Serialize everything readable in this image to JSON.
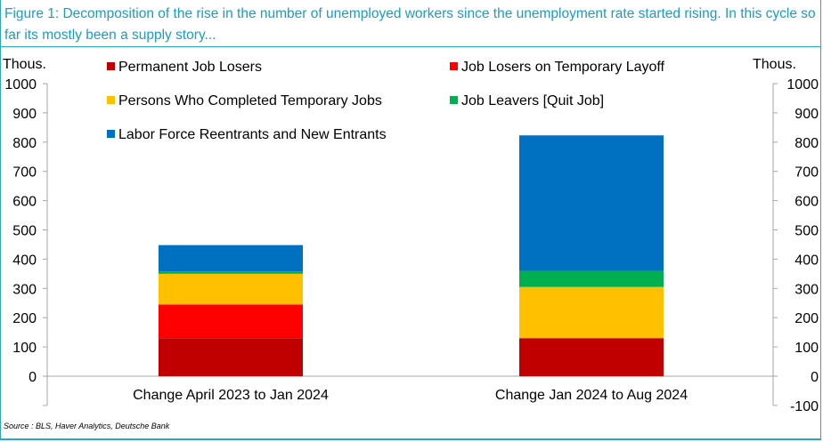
{
  "figure": {
    "title": "Figure 1: Decomposition of the rise in the number of unemployed workers since the unemployment rate started rising. In this cycle so far its mostly been a supply story...",
    "source": "Source : BLS, Haver Analytics, Deutsche Bank"
  },
  "chart_data": {
    "type": "bar",
    "stacked": true,
    "categories": [
      "Change April 2023 to Jan 2024",
      "Change Jan 2024 to Aug 2024"
    ],
    "series": [
      {
        "name": "Permanent Job Losers",
        "color": "#c00000",
        "values": [
          130,
          130
        ]
      },
      {
        "name": "Job Losers on Temporary Layoff",
        "color": "#ff0000",
        "values": [
          115,
          0
        ]
      },
      {
        "name": "Persons Who Completed Temporary Jobs",
        "color": "#ffc000",
        "values": [
          105,
          175
        ]
      },
      {
        "name": "Job Leavers [Quit Job]",
        "color": "#00b050",
        "values": [
          8,
          55
        ]
      },
      {
        "name": "Labor Force Reentrants and New Entrants",
        "color": "#0070c0",
        "values": [
          90,
          463
        ]
      }
    ],
    "ylabel_left": "Thous.",
    "ylabel_right": "Thous.",
    "ylim": [
      -100,
      1000
    ],
    "yticks": [
      -100,
      0,
      100,
      200,
      300,
      400,
      500,
      600,
      700,
      800,
      900,
      1000
    ],
    "left_tick_labels": [
      "0",
      "100",
      "200",
      "300",
      "400",
      "500",
      "600",
      "700",
      "800",
      "900",
      "1000"
    ],
    "right_tick_labels": [
      "-100",
      "0",
      "100",
      "200",
      "300",
      "400",
      "500",
      "600",
      "700",
      "800",
      "900",
      "1000"
    ],
    "grid": false,
    "legend_position": "top"
  }
}
